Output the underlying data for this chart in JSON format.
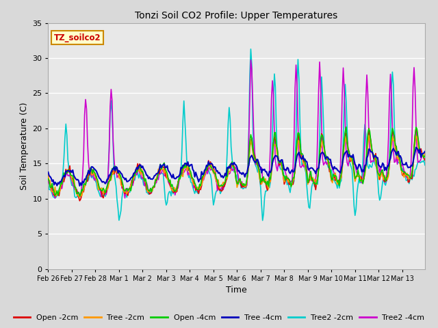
{
  "title": "Tonzi Soil CO2 Profile: Upper Temperatures",
  "xlabel": "Time",
  "ylabel": "Soil Temperature (C)",
  "ylim": [
    0,
    35
  ],
  "yticks": [
    0,
    5,
    10,
    15,
    20,
    25,
    30,
    35
  ],
  "annotation": "TZ_soilco2",
  "annotation_color": "#cc0000",
  "annotation_bg": "#ffffcc",
  "annotation_border": "#cc8800",
  "fig_bg": "#d9d9d9",
  "plot_bg": "#e8e8e8",
  "grid_color": "#ffffff",
  "series": {
    "Open -2cm": {
      "color": "#dd0000",
      "lw": 1.2
    },
    "Tree -2cm": {
      "color": "#ff9900",
      "lw": 1.2
    },
    "Open -4cm": {
      "color": "#00cc00",
      "lw": 1.2
    },
    "Tree -4cm": {
      "color": "#0000bb",
      "lw": 1.5
    },
    "Tree2 -2cm": {
      "color": "#00cccc",
      "lw": 1.2
    },
    "Tree2 -4cm": {
      "color": "#cc00cc",
      "lw": 1.2
    }
  },
  "date_labels": [
    "Feb 26",
    "Feb 27",
    "Feb 28",
    "Mar 1",
    "Mar 2",
    "Mar 3",
    "Mar 4",
    "Mar 5",
    "Mar 6",
    "Mar 7",
    "Mar 8",
    "Mar 9",
    "Mar 10",
    "Mar 11",
    "Mar 12",
    "Mar 13"
  ],
  "n_days": 16,
  "pts_per_day": 24
}
